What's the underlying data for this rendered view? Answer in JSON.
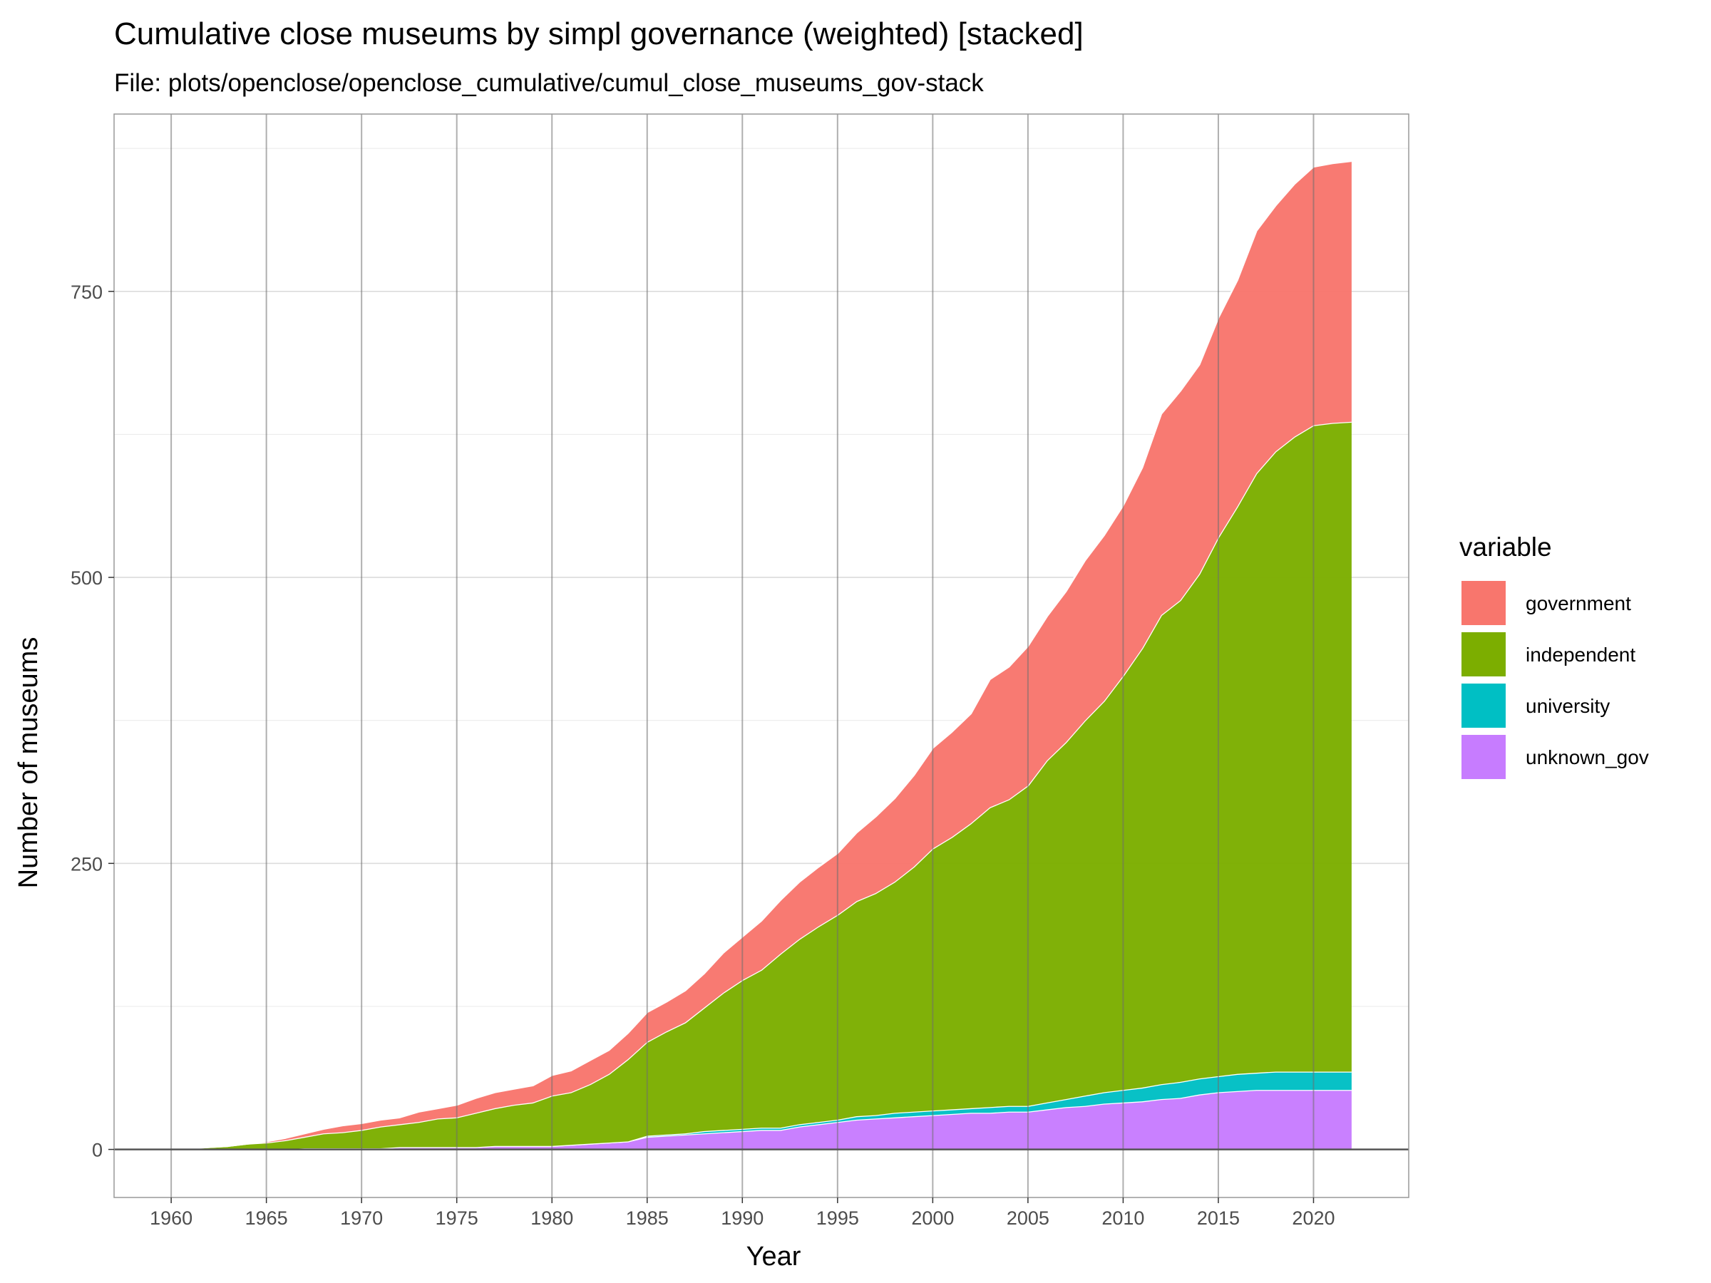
{
  "chart_data": {
    "type": "area",
    "stacked": true,
    "title": "Cumulative close museums by simpl governance (weighted) [stacked]",
    "subtitle": "File: plots/openclose/openclose_cumulative/cumul_close_museums_gov-stack",
    "xlabel": "Year",
    "ylabel": "Number of museums",
    "xlim": [
      1957,
      2025
    ],
    "ylim": [
      -42,
      905
    ],
    "x_ticks": [
      1960,
      1965,
      1970,
      1975,
      1980,
      1985,
      1990,
      1995,
      2000,
      2005,
      2010,
      2015,
      2020
    ],
    "y_ticks": [
      0,
      250,
      500,
      750
    ],
    "grid": true,
    "legend": {
      "title": "variable",
      "placement": "right"
    },
    "x": [
      1960,
      1961,
      1962,
      1963,
      1964,
      1965,
      1966,
      1967,
      1968,
      1969,
      1970,
      1971,
      1972,
      1973,
      1974,
      1975,
      1976,
      1977,
      1978,
      1979,
      1980,
      1981,
      1982,
      1983,
      1984,
      1985,
      1986,
      1987,
      1988,
      1989,
      1990,
      1991,
      1992,
      1993,
      1994,
      1995,
      1996,
      1997,
      1998,
      1999,
      2000,
      2001,
      2002,
      2003,
      2004,
      2005,
      2006,
      2007,
      2008,
      2009,
      2010,
      2011,
      2012,
      2013,
      2014,
      2015,
      2016,
      2017,
      2018,
      2019,
      2020,
      2021,
      2022
    ],
    "series": [
      {
        "name": "unknown_gov",
        "color": "#C77CFF",
        "values": [
          0,
          0,
          0,
          0,
          0,
          0,
          0,
          1,
          1,
          1,
          1,
          1,
          2,
          2,
          2,
          2,
          2,
          3,
          3,
          3,
          3,
          4,
          5,
          6,
          7,
          11,
          12,
          13,
          14,
          15,
          16,
          17,
          17,
          20,
          22,
          24,
          26,
          27,
          28,
          29,
          30,
          31,
          32,
          32,
          33,
          33,
          35,
          37,
          38,
          40,
          41,
          42,
          44,
          45,
          48,
          50,
          51,
          52,
          52,
          52,
          52,
          52,
          52
        ]
      },
      {
        "name": "university",
        "color": "#00BFC4",
        "values": [
          0,
          0,
          0,
          0,
          0,
          0,
          0,
          0,
          0,
          0,
          0,
          0,
          0,
          0,
          0,
          0,
          0,
          0,
          0,
          0,
          0,
          0,
          0,
          0,
          0,
          1,
          1,
          1,
          2,
          2,
          2,
          2,
          2,
          2,
          2,
          2,
          3,
          3,
          4,
          4,
          4,
          4,
          4,
          5,
          5,
          5,
          6,
          7,
          9,
          10,
          11,
          12,
          13,
          14,
          14,
          14,
          15,
          15,
          16,
          16,
          16,
          16,
          16
        ]
      },
      {
        "name": "independent",
        "color": "#7CAE00",
        "values": [
          0,
          1,
          2,
          3,
          5,
          6,
          8,
          10,
          13,
          14,
          16,
          19,
          20,
          22,
          25,
          26,
          30,
          33,
          36,
          38,
          44,
          46,
          52,
          60,
          72,
          82,
          90,
          97,
          108,
          120,
          130,
          138,
          152,
          162,
          171,
          179,
          188,
          194,
          202,
          214,
          229,
          238,
          249,
          262,
          268,
          280,
          299,
          312,
          328,
          342,
          362,
          384,
          410,
          421,
          441,
          471,
          496,
          524,
          542,
          555,
          565,
          567,
          568
        ]
      },
      {
        "name": "government",
        "color": "#F8766D",
        "values": [
          0,
          0,
          0,
          0,
          0,
          1,
          2,
          3,
          4,
          6,
          6,
          6,
          6,
          9,
          9,
          11,
          13,
          14,
          14,
          15,
          18,
          19,
          21,
          21,
          23,
          26,
          26,
          28,
          30,
          35,
          38,
          43,
          47,
          50,
          52,
          54,
          60,
          67,
          73,
          80,
          88,
          92,
          96,
          112,
          116,
          122,
          126,
          132,
          140,
          145,
          149,
          158,
          176,
          183,
          183,
          192,
          198,
          212,
          215,
          221,
          226,
          227,
          228
        ]
      }
    ]
  }
}
